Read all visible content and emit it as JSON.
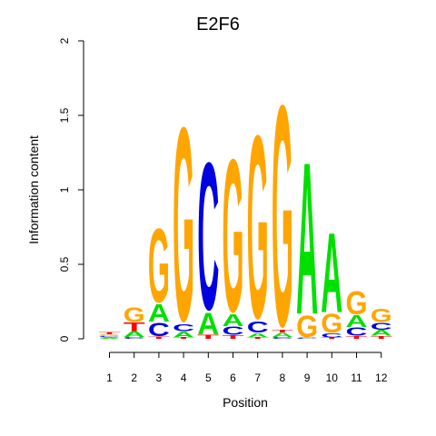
{
  "chart_data": {
    "type": "sequence-logo",
    "title": "E2F6",
    "xlabel": "Position",
    "ylabel": "Information content",
    "ylim": [
      0,
      2
    ],
    "yticks": [
      "0",
      "0.5",
      "1",
      "1.5",
      "2"
    ],
    "yticks_values": [
      0,
      0.5,
      1,
      1.5,
      2
    ],
    "positions": [
      "1",
      "2",
      "3",
      "4",
      "5",
      "6",
      "7",
      "8",
      "9",
      "10",
      "11",
      "12"
    ],
    "base_colors": {
      "A": "#00e000",
      "C": "#0000e0",
      "G": "#ffa500",
      "T": "#ff0000"
    },
    "columns": [
      [
        [
          "A",
          0.008
        ],
        [
          "C",
          0.01
        ],
        [
          "G",
          0.012
        ],
        [
          "T",
          0.015
        ]
      ],
      [
        [
          "C",
          0.012
        ],
        [
          "A",
          0.04
        ],
        [
          "T",
          0.06
        ],
        [
          "G",
          0.11
        ]
      ],
      [
        [
          "T",
          0.015
        ],
        [
          "C",
          0.1
        ],
        [
          "A",
          0.12
        ],
        [
          "G",
          0.54
        ]
      ],
      [
        [
          "T",
          0.01
        ],
        [
          "A",
          0.04
        ],
        [
          "C",
          0.05
        ],
        [
          "G",
          1.42
        ]
      ],
      [
        [
          "T",
          0.03
        ],
        [
          "A",
          0.15
        ],
        [
          "C",
          1.08
        ]
      ],
      [
        [
          "T",
          0.025
        ],
        [
          "C",
          0.06
        ],
        [
          "A",
          0.08
        ],
        [
          "G",
          1.12
        ]
      ],
      [
        [
          "T",
          0.01
        ],
        [
          "A",
          0.03
        ],
        [
          "C",
          0.08
        ],
        [
          "G",
          1.34
        ]
      ],
      [
        [
          "C",
          0.012
        ],
        [
          "A",
          0.03
        ],
        [
          "T",
          0.02
        ],
        [
          "G",
          1.62
        ]
      ],
      [
        [
          "C",
          0.01
        ],
        [
          "G",
          0.16
        ],
        [
          "A",
          1.05
        ]
      ],
      [
        [
          "T",
          0.01
        ],
        [
          "C",
          0.03
        ],
        [
          "G",
          0.14
        ],
        [
          "A",
          0.55
        ]
      ],
      [
        [
          "T",
          0.02
        ],
        [
          "C",
          0.06
        ],
        [
          "A",
          0.08
        ],
        [
          "G",
          0.17
        ]
      ],
      [
        [
          "T",
          0.02
        ],
        [
          "A",
          0.04
        ],
        [
          "C",
          0.05
        ],
        [
          "G",
          0.1
        ]
      ]
    ]
  }
}
